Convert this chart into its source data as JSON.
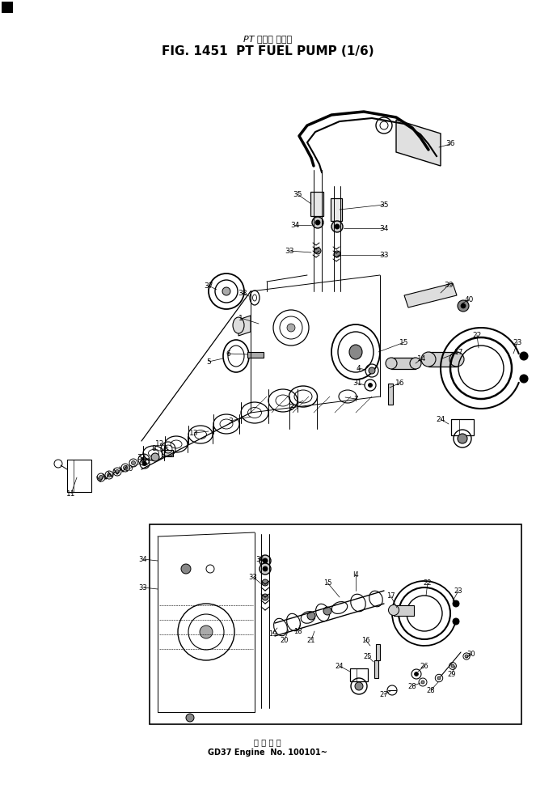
{
  "title_line1": "PT フェル ポンプ",
  "title_line2": "FIG. 1451  PT FUEL PUMP (1/6)",
  "footer_line1": "備 品 番 号",
  "footer_line2": "GD37 Engine  No. 100101~",
  "bg_color": "#ffffff",
  "fg_color": "#000000",
  "fig_width": 6.63,
  "fig_height": 9.8
}
